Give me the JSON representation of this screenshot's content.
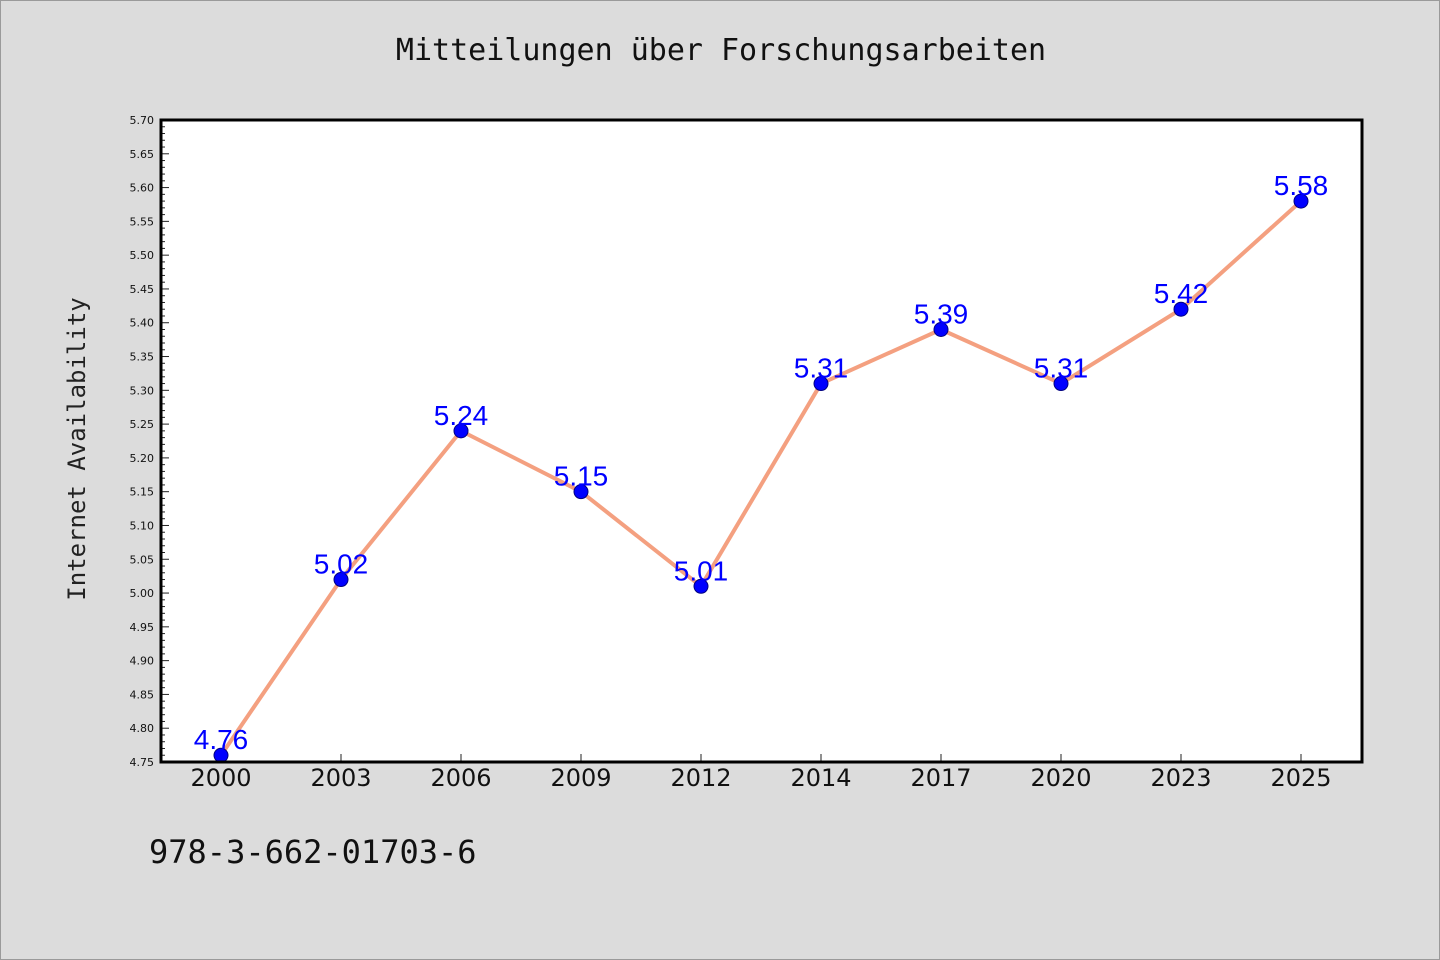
{
  "chart_data": {
    "type": "line",
    "title": "Mitteilungen über Forschungsarbeiten",
    "xlabel": "",
    "ylabel": "Internet Availability",
    "categories": [
      "2000",
      "2003",
      "2006",
      "2009",
      "2012",
      "2014",
      "2017",
      "2020",
      "2023",
      "2025"
    ],
    "series": [
      {
        "values": [
          4.76,
          5.02,
          5.24,
          5.15,
          5.01,
          5.31,
          5.39,
          5.31,
          5.42,
          5.58
        ],
        "line_color": "#f4a080",
        "marker_color": "#0000ff",
        "label_color": "#0000ff"
      }
    ],
    "ylim": [
      4.75,
      5.7
    ],
    "yticks": [
      "4.75",
      "4.80",
      "4.85",
      "4.90",
      "4.95",
      "5.00",
      "5.05",
      "5.10",
      "5.15",
      "5.20",
      "5.25",
      "5.30",
      "5.35",
      "5.40",
      "5.45",
      "5.50",
      "5.55",
      "5.60",
      "5.65",
      "5.70"
    ],
    "data_labels": [
      "4.76",
      "5.02",
      "5.24",
      "5.15",
      "5.01",
      "5.31",
      "5.39",
      "5.31",
      "5.42",
      "5.58"
    ],
    "grid": false,
    "legend": "none"
  },
  "footer": {
    "text": "978-3-662-01703-6"
  }
}
